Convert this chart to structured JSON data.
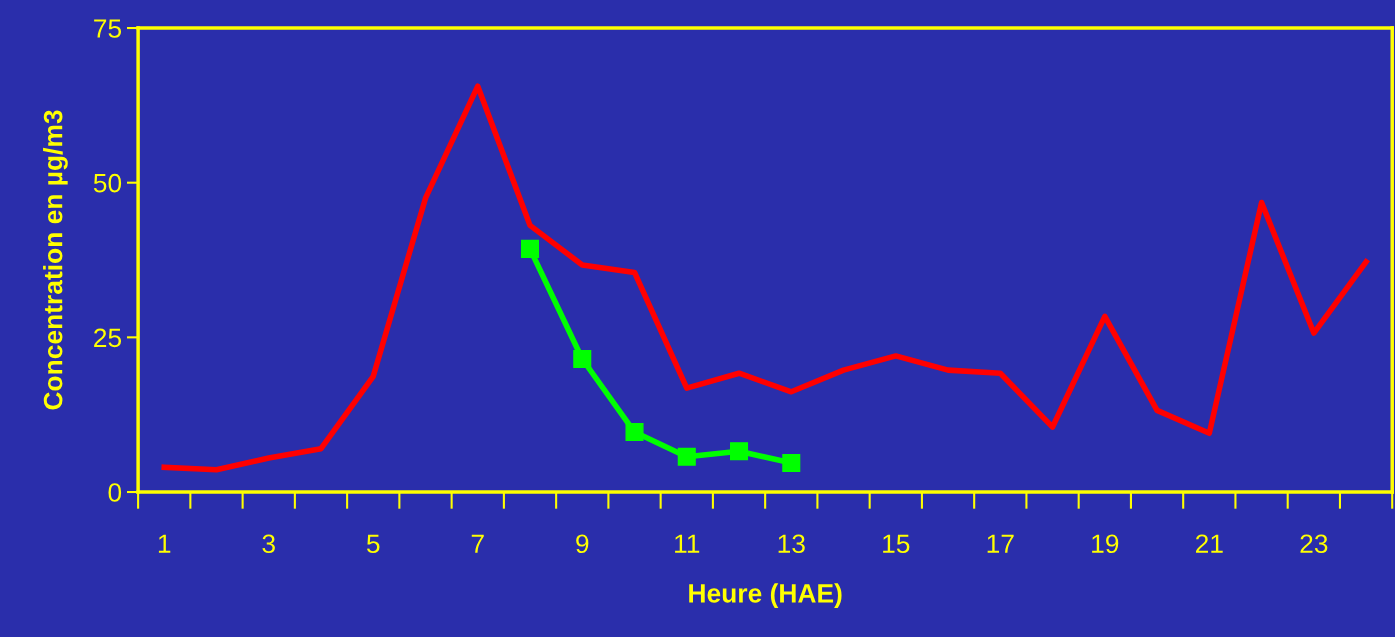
{
  "chart_data": {
    "type": "line",
    "xlabel": "Heure (HAE)",
    "ylabel": "Concentration en µg/m3",
    "categories": [
      "1",
      null,
      "3",
      null,
      "5",
      null,
      "7",
      null,
      "9",
      null,
      "11",
      null,
      "13",
      null,
      "15",
      null,
      "17",
      null,
      "19",
      null,
      "21",
      null,
      "23",
      null
    ],
    "series": [
      {
        "color": "#ff0000",
        "marker": "none",
        "values": [
          4.0,
          3.6,
          5.5,
          7.0,
          18.7,
          47.5,
          65.6,
          43.1,
          36.7,
          35.5,
          16.8,
          19.2,
          16.2,
          19.7,
          22.0,
          19.7,
          19.2,
          10.5,
          28.4,
          13.2,
          9.5,
          46.8,
          25.7,
          37.2
        ]
      },
      {
        "color": "#00ff00",
        "marker": "square",
        "values": [
          null,
          null,
          null,
          null,
          null,
          null,
          null,
          39.3,
          21.5,
          9.7,
          5.7,
          6.6,
          4.7,
          null,
          null,
          null,
          null,
          null,
          null,
          null,
          null,
          null,
          null,
          null
        ]
      }
    ],
    "ylim": [
      0,
      75
    ],
    "yticks": [
      0,
      25,
      50,
      75
    ],
    "grid": false,
    "legend": false
  }
}
